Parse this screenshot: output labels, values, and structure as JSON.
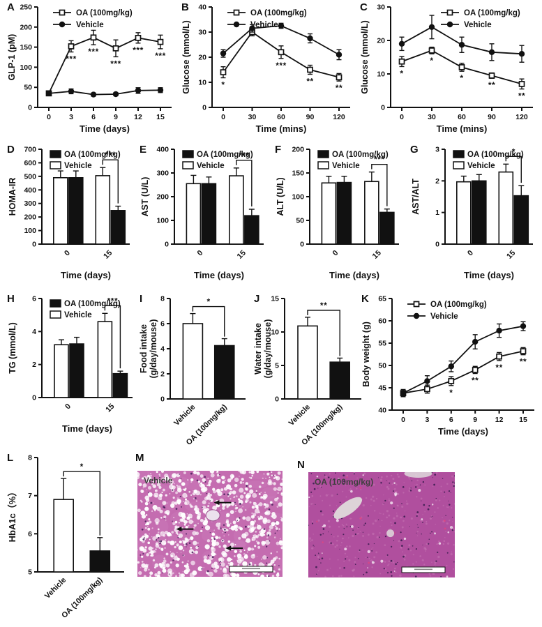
{
  "panel_letters": {
    "A": "A",
    "B": "B",
    "C": "C",
    "D": "D",
    "E": "E",
    "F": "F",
    "G": "G",
    "H": "H",
    "I": "I",
    "J": "J",
    "K": "K",
    "L": "L",
    "M": "M",
    "N": "N"
  },
  "chart_data": [
    {
      "panel": "A",
      "type": "line",
      "x": [
        0,
        3,
        6,
        9,
        12,
        15
      ],
      "xlabel": "Time (days)",
      "ylabel": "GLP-1 (pM)",
      "ylim": [
        0,
        250
      ],
      "ytick_step": 50,
      "legend_pos": "left",
      "series": [
        {
          "name": "OA (100mg/kg)",
          "marker": "open-square",
          "values": [
            35,
            152,
            174,
            147,
            173,
            163
          ],
          "errors": [
            5,
            14,
            18,
            21,
            13,
            17
          ],
          "sig": [
            "",
            "***",
            "***",
            "***",
            "***",
            "***"
          ]
        },
        {
          "name": "Vehicle",
          "marker": "filled-circle",
          "values": [
            35,
            40,
            32,
            33,
            42,
            43
          ],
          "errors": [
            4,
            6,
            4,
            4,
            7,
            6
          ],
          "sig": [
            "",
            "",
            "",
            "",
            "",
            ""
          ]
        }
      ]
    },
    {
      "panel": "B",
      "type": "line",
      "x": [
        0,
        30,
        60,
        90,
        120
      ],
      "xlabel": "Time (mins)",
      "ylabel": "Glucose (mmol/L)",
      "ylim": [
        0,
        40
      ],
      "ytick_step": 10,
      "legend_pos": "left",
      "series": [
        {
          "name": "OA (100mg/kg)",
          "marker": "open-square",
          "values": [
            14,
            30,
            22,
            15,
            12
          ],
          "errors": [
            2.2,
            1.5,
            2.5,
            1.8,
            1.5
          ],
          "sig": [
            "*",
            "",
            "***",
            "**",
            "**"
          ]
        },
        {
          "name": "Vehicle",
          "marker": "filled-circle",
          "values": [
            21.5,
            31.5,
            32.5,
            27.5,
            21
          ],
          "errors": [
            1.5,
            1.5,
            1,
            1.8,
            2
          ],
          "sig": [
            "",
            "",
            "",
            "",
            ""
          ]
        }
      ]
    },
    {
      "panel": "C",
      "type": "line",
      "x": [
        0,
        30,
        60,
        90,
        120
      ],
      "xlabel": "Time (mins)",
      "ylabel": "Glucose (mmol/L)",
      "ylim": [
        0,
        30
      ],
      "ytick_step": 10,
      "legend_pos": "right",
      "series": [
        {
          "name": "OA (100mg/kg)",
          "marker": "open-square",
          "values": [
            13.7,
            17,
            12,
            9.5,
            7
          ],
          "errors": [
            1.5,
            1,
            1.2,
            0.8,
            1.5
          ],
          "sig": [
            "*",
            "*",
            "*",
            "**",
            "**"
          ]
        },
        {
          "name": "Vehicle",
          "marker": "filled-circle",
          "values": [
            19,
            24,
            18.7,
            16.5,
            16
          ],
          "errors": [
            2,
            3.5,
            2.3,
            2.5,
            2.5
          ],
          "sig": [
            "",
            "",
            "",
            "",
            ""
          ]
        }
      ]
    },
    {
      "panel": "D",
      "type": "grouped-bar",
      "categories": [
        "0",
        "15"
      ],
      "xlabel": "Time (days)",
      "ylabel": "HOMA-IR",
      "ylim": [
        0,
        700
      ],
      "ytick_step": 100,
      "legend": [
        {
          "name": "OA (100mg/kg)",
          "fill": "black"
        },
        {
          "name": "Vehicle",
          "fill": "white"
        }
      ],
      "series": [
        {
          "name": "Vehicle",
          "fill": "white",
          "values": [
            490,
            505
          ],
          "errors": [
            50,
            60
          ]
        },
        {
          "name": "OA (100mg/kg)",
          "fill": "black",
          "values": [
            490,
            248
          ],
          "errors": [
            50,
            32
          ]
        }
      ],
      "sig": {
        "category_index": 1,
        "stars": "***"
      }
    },
    {
      "panel": "E",
      "type": "grouped-bar",
      "categories": [
        "0",
        "15"
      ],
      "xlabel": "Time (days)",
      "ylabel": "AST (U/L)",
      "ylim": [
        0,
        400
      ],
      "ytick_step": 100,
      "legend": [
        {
          "name": "OA (100mg/kg)",
          "fill": "black"
        },
        {
          "name": "Vehicle",
          "fill": "white"
        }
      ],
      "series": [
        {
          "name": "Vehicle",
          "fill": "white",
          "values": [
            255,
            288
          ],
          "errors": [
            35,
            33
          ]
        },
        {
          "name": "OA (100mg/kg)",
          "fill": "black",
          "values": [
            255,
            120
          ],
          "errors": [
            28,
            27
          ]
        }
      ],
      "sig": {
        "category_index": 1,
        "stars": "***"
      }
    },
    {
      "panel": "F",
      "type": "grouped-bar",
      "categories": [
        "0",
        "15"
      ],
      "xlabel": "Time (days)",
      "ylabel": "ALT (U/L)",
      "ylim": [
        0,
        200
      ],
      "ytick_step": 50,
      "legend": [
        {
          "name": "OA (100mg/kg)",
          "fill": "black"
        },
        {
          "name": "Vehicle",
          "fill": "white"
        }
      ],
      "series": [
        {
          "name": "Vehicle",
          "fill": "white",
          "values": [
            129,
            132
          ],
          "errors": [
            14,
            20
          ]
        },
        {
          "name": "OA (100mg/kg)",
          "fill": "black",
          "values": [
            130,
            67
          ],
          "errors": [
            13,
            7
          ]
        }
      ],
      "sig": {
        "category_index": 1,
        "stars": "***"
      }
    },
    {
      "panel": "G",
      "type": "grouped-bar",
      "categories": [
        "0",
        "15"
      ],
      "xlabel": "Time (days)",
      "ylabel": "AST/ALT",
      "ylim": [
        0,
        3
      ],
      "ytick_step": 1,
      "legend": [
        {
          "name": "OA (100mg/kg)",
          "fill": "black"
        },
        {
          "name": "Vehicle",
          "fill": "white"
        }
      ],
      "series": [
        {
          "name": "Vehicle",
          "fill": "white",
          "values": [
            1.97,
            2.28
          ],
          "errors": [
            0.18,
            0.25
          ]
        },
        {
          "name": "OA (100mg/kg)",
          "fill": "black",
          "values": [
            2.0,
            1.53
          ],
          "errors": [
            0.2,
            0.32
          ]
        }
      ],
      "sig": {
        "category_index": 1,
        "stars": "*"
      }
    },
    {
      "panel": "H",
      "type": "grouped-bar",
      "categories": [
        "0",
        "15"
      ],
      "xlabel": "Time (days)",
      "ylabel": "TG (mmol/L)",
      "ylim": [
        0,
        6
      ],
      "ytick_step": 2,
      "legend": [
        {
          "name": "OA (100mg/kg)",
          "fill": "black"
        },
        {
          "name": "Vehicle",
          "fill": "white"
        }
      ],
      "series": [
        {
          "name": "Vehicle",
          "fill": "white",
          "values": [
            3.2,
            4.6
          ],
          "errors": [
            0.3,
            0.5
          ]
        },
        {
          "name": "OA (100mg/kg)",
          "fill": "black",
          "values": [
            3.25,
            1.45
          ],
          "errors": [
            0.4,
            0.15
          ]
        }
      ],
      "sig": {
        "category_index": 1,
        "stars": "***"
      }
    },
    {
      "panel": "I",
      "type": "bar",
      "categories": [
        "Vehicle",
        "OA (100mg/kg)"
      ],
      "values": [
        6.0,
        4.25
      ],
      "errors": [
        0.8,
        0.55
      ],
      "fills": [
        "white",
        "black"
      ],
      "ylabel": "Food intake",
      "ylabel2": "(g/day/mouse)",
      "ylim": [
        0,
        8
      ],
      "ytick_step": 2,
      "sig": {
        "stars": "*"
      }
    },
    {
      "panel": "J",
      "type": "bar",
      "categories": [
        "Vehicle",
        "OA (100mg/kg)"
      ],
      "values": [
        10.9,
        5.5
      ],
      "errors": [
        1.3,
        0.6
      ],
      "fills": [
        "white",
        "black"
      ],
      "ylabel": "Water intake",
      "ylabel2": "(g/day/mouse)",
      "ylim": [
        0,
        15
      ],
      "ytick_step": 5,
      "sig": {
        "stars": "**"
      }
    },
    {
      "panel": "K",
      "type": "line",
      "x": [
        0,
        3,
        6,
        9,
        12,
        15
      ],
      "xlabel": "Time (days)",
      "ylabel": "Body weight (g)",
      "ylim": [
        40,
        65
      ],
      "ytick_step": 5,
      "legend_pos": "left",
      "series": [
        {
          "name": "OA (100mg/kg)",
          "marker": "open-square",
          "values": [
            43.8,
            44.7,
            46.5,
            49,
            52,
            53.2
          ],
          "errors": [
            0.8,
            0.9,
            1,
            0.8,
            0.9,
            0.8
          ],
          "sig": [
            "",
            "",
            "*",
            "**",
            "**",
            "**"
          ]
        },
        {
          "name": "Vehicle",
          "marker": "filled-circle",
          "values": [
            43.8,
            46.5,
            49.8,
            55.3,
            57.8,
            58.8
          ],
          "errors": [
            0.8,
            1.2,
            1.2,
            1.6,
            1.5,
            1
          ],
          "sig": [
            "",
            "",
            "",
            "",
            "",
            ""
          ]
        }
      ]
    },
    {
      "panel": "L",
      "type": "bar",
      "categories": [
        "Vehicle",
        "OA (100mg/kg)"
      ],
      "values": [
        6.9,
        5.55
      ],
      "errors": [
        0.55,
        0.35
      ],
      "fills": [
        "white",
        "black"
      ],
      "ylabel": "HbA1c（%）",
      "ylabel2": "",
      "ylim": [
        5,
        8
      ],
      "ytick_step": 1,
      "sig": {
        "stars": "*"
      }
    }
  ],
  "histology": [
    {
      "panel": "M",
      "label": "Vehicle",
      "style": "vacuolated",
      "base_color": "#c46cb0",
      "blob_color": "#cf7fbd",
      "speck_color": "#46215c",
      "vessel_color": "#ece2ed",
      "arrow_color": "#111111",
      "arrows": [
        [
          0.56,
          0.3
        ],
        [
          0.3,
          0.55
        ],
        [
          0.64,
          0.73
        ]
      ],
      "scale_bar": true
    },
    {
      "panel": "N",
      "label": "OA (100mg/kg)",
      "style": "uniform",
      "base_color": "#b04f9e",
      "blob_color": "#c77ab6",
      "speck_color": "#371b4e",
      "vessel_color": "#ddd3d8",
      "red_speck_color": "#e0457f",
      "arrows": [],
      "scale_bar": true
    }
  ]
}
